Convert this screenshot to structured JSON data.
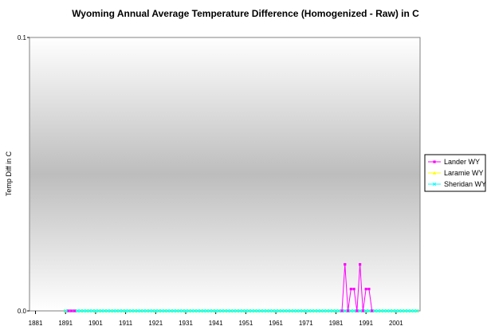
{
  "chart_data": {
    "type": "line",
    "title": "Wyoming Annual Average Temperature Difference (Homogenized - Raw) in C",
    "xlabel": "",
    "ylabel": "Temp Diff in C",
    "xlim": [
      1879,
      2009
    ],
    "ylim": [
      0,
      0.1
    ],
    "x_ticks": [
      1881,
      1891,
      1901,
      1911,
      1921,
      1931,
      1941,
      1951,
      1961,
      1971,
      1981,
      1991,
      2001
    ],
    "y_ticks": [
      {
        "value": 0,
        "label": "0.0"
      },
      {
        "value": 0.1,
        "label": "0.1"
      }
    ],
    "legend_position": "right",
    "series": [
      {
        "name": "Lander WY",
        "color": "#ff00ff",
        "marker": "square",
        "points": [
          [
            1892,
            0
          ],
          [
            1893,
            0
          ],
          [
            1894,
            0
          ],
          [
            1983,
            0
          ],
          [
            1984,
            0.017
          ],
          [
            1985,
            0
          ],
          [
            1986,
            0.008
          ],
          [
            1987,
            0.008
          ],
          [
            1988,
            0
          ],
          [
            1989,
            0.017
          ],
          [
            1990,
            0
          ],
          [
            1991,
            0.008
          ],
          [
            1992,
            0.008
          ],
          [
            1993,
            0
          ]
        ]
      },
      {
        "name": "Laramie WY",
        "color": "#ffff00",
        "marker": "triangle",
        "flat_range": [
          1891,
          2008
        ],
        "flat_value": 0
      },
      {
        "name": "Sheridan WY",
        "color": "#00ffff",
        "marker": "x",
        "flat_range": [
          1891,
          2008
        ],
        "flat_value": 0
      }
    ]
  }
}
